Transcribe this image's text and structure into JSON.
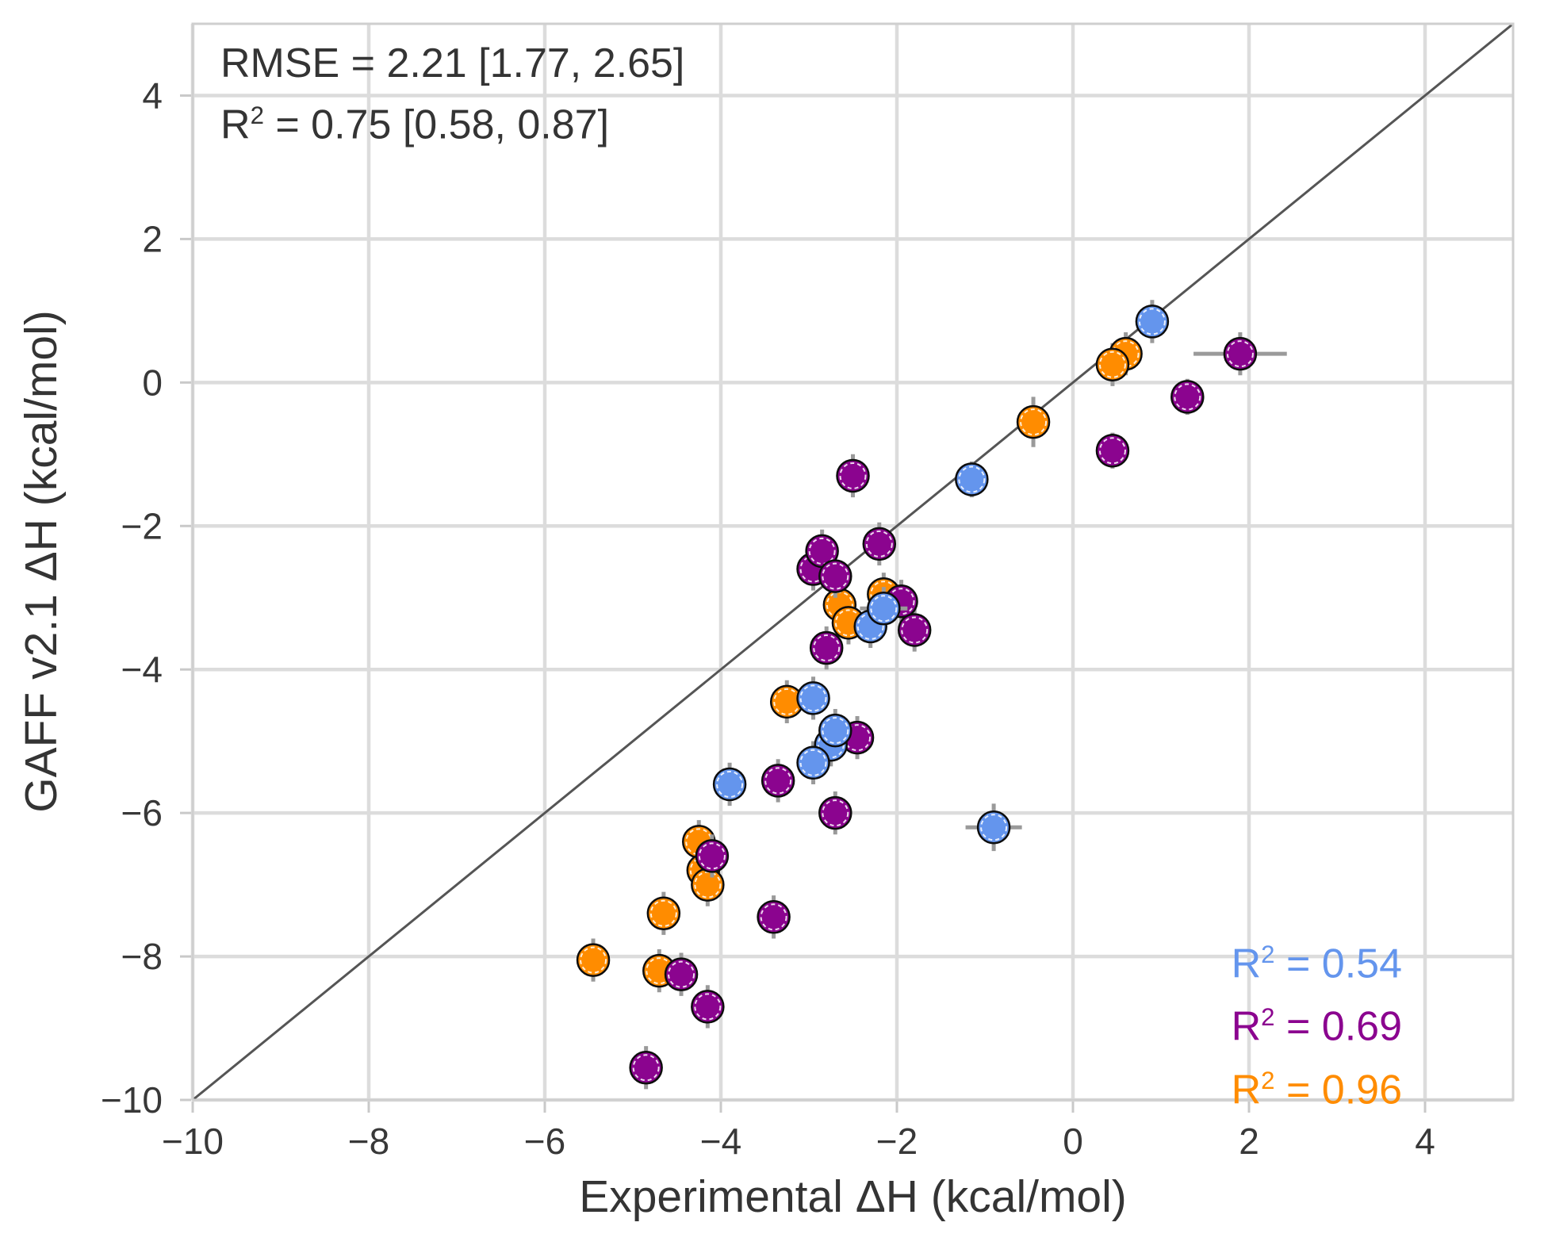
{
  "chart_data": {
    "type": "scatter",
    "xlabel": "Experimental ΔH (kcal/mol)",
    "ylabel": "GAFF v2.1 ΔH (kcal/mol)",
    "xlim": [
      -10,
      5
    ],
    "ylim": [
      -10,
      5
    ],
    "grid": true,
    "identity_line": true,
    "xticks": {
      "values": [
        -10,
        -8,
        -6,
        -4,
        -2,
        0,
        2,
        4
      ],
      "labels": [
        "−10",
        "−8",
        "−6",
        "−4",
        "−2",
        "0",
        "2",
        "4"
      ]
    },
    "yticks": {
      "values": [
        4,
        2,
        0,
        -2,
        -4,
        -6,
        -8,
        -10
      ],
      "labels": [
        "4",
        "2",
        "0",
        "−2",
        "−4",
        "−6",
        "−8",
        "−10"
      ]
    },
    "annotations": {
      "rmse_line": "RMSE = 2.21 [1.77, 2.65]",
      "r2_prefix": "R",
      "r2_sup": "2",
      "r2_rest": " = 0.75 [0.58, 0.87]"
    },
    "legend_position": "lower right",
    "annotation_position": "upper left",
    "colors": {
      "grid": "#dcdcdc",
      "border": "#cfcfcf",
      "tick": "#c9c9c9",
      "identity_line": "#555555",
      "error_bar": "#9a9a9a",
      "marker_edge": "#0d0d0d",
      "text": "#343434"
    },
    "series": [
      {
        "name": "blue",
        "color": "#6495ED",
        "r2": 0.54,
        "legend": {
          "prefix": "R",
          "sup": "2",
          "rest": " = 0.54"
        },
        "points": [
          {
            "x": 0.9,
            "y": 0.85,
            "xerr": 0.15,
            "yerr": 0.3
          },
          {
            "x": -1.15,
            "y": -1.35,
            "xerr": 0.15,
            "yerr": 0.25
          },
          {
            "x": -2.3,
            "y": -3.4,
            "xerr": 0,
            "yerr": 0.3
          },
          {
            "x": -2.15,
            "y": -3.15,
            "xerr": 0.27,
            "yerr": 0.3
          },
          {
            "x": -2.95,
            "y": -4.4,
            "xerr": 0,
            "yerr": 0.3
          },
          {
            "x": -2.75,
            "y": -5.05,
            "xerr": 0,
            "yerr": 0.3
          },
          {
            "x": -2.7,
            "y": -4.85,
            "xerr": 0,
            "yerr": 0.3
          },
          {
            "x": -2.95,
            "y": -5.3,
            "xerr": 0,
            "yerr": 0.3
          },
          {
            "x": -3.9,
            "y": -5.6,
            "xerr": 0,
            "yerr": 0.3
          },
          {
            "x": -0.9,
            "y": -6.2,
            "xerr": 0.32,
            "yerr": 0.33
          }
        ]
      },
      {
        "name": "purple",
        "color": "#8B048F",
        "r2": 0.69,
        "legend": {
          "prefix": "R",
          "sup": "2",
          "rest": " = 0.69"
        },
        "points": [
          {
            "x": 1.9,
            "y": 0.4,
            "xerr": 0.53,
            "yerr": 0.3
          },
          {
            "x": 1.3,
            "y": -0.2,
            "xerr": 0,
            "yerr": 0.25
          },
          {
            "x": 0.45,
            "y": -0.95,
            "xerr": 0,
            "yerr": 0.25
          },
          {
            "x": -2.5,
            "y": -1.3,
            "xerr": 0,
            "yerr": 0.3
          },
          {
            "x": -2.2,
            "y": -2.25,
            "xerr": 0,
            "yerr": 0.3
          },
          {
            "x": -2.95,
            "y": -2.6,
            "xerr": 0,
            "yerr": 0.3
          },
          {
            "x": -2.85,
            "y": -2.35,
            "xerr": 0,
            "yerr": 0.3
          },
          {
            "x": -2.7,
            "y": -2.7,
            "xerr": 0,
            "yerr": 0.3
          },
          {
            "x": -1.95,
            "y": -3.05,
            "xerr": 0,
            "yerr": 0.3
          },
          {
            "x": -1.8,
            "y": -3.45,
            "xerr": 0,
            "yerr": 0.3
          },
          {
            "x": -2.8,
            "y": -3.7,
            "xerr": 0,
            "yerr": 0.3
          },
          {
            "x": -2.45,
            "y": -4.95,
            "xerr": 0,
            "yerr": 0.3
          },
          {
            "x": -3.35,
            "y": -5.55,
            "xerr": 0,
            "yerr": 0.3
          },
          {
            "x": -2.7,
            "y": -6.0,
            "xerr": 0,
            "yerr": 0.3
          },
          {
            "x": -4.1,
            "y": -6.6,
            "xerr": 0,
            "yerr": 0.3
          },
          {
            "x": -3.4,
            "y": -7.45,
            "xerr": 0,
            "yerr": 0.3
          },
          {
            "x": -4.45,
            "y": -8.25,
            "xerr": 0,
            "yerr": 0.3
          },
          {
            "x": -4.15,
            "y": -8.7,
            "xerr": 0,
            "yerr": 0.3
          },
          {
            "x": -4.85,
            "y": -9.55,
            "xerr": 0,
            "yerr": 0.3
          }
        ]
      },
      {
        "name": "orange",
        "color": "#FF8C00",
        "r2": 0.96,
        "legend": {
          "prefix": "R",
          "sup": "2",
          "rest": " = 0.96"
        },
        "points": [
          {
            "x": 0.6,
            "y": 0.4,
            "xerr": 0,
            "yerr": 0.3
          },
          {
            "x": 0.45,
            "y": 0.25,
            "xerr": 0,
            "yerr": 0.3
          },
          {
            "x": -0.45,
            "y": -0.55,
            "xerr": 0,
            "yerr": 0.35
          },
          {
            "x": -2.15,
            "y": -2.95,
            "xerr": 0,
            "yerr": 0.3
          },
          {
            "x": -2.65,
            "y": -3.1,
            "xerr": 0,
            "yerr": 0.3
          },
          {
            "x": -2.55,
            "y": -3.35,
            "xerr": 0,
            "yerr": 0.3
          },
          {
            "x": -3.25,
            "y": -4.45,
            "xerr": 0,
            "yerr": 0.3
          },
          {
            "x": -4.25,
            "y": -6.4,
            "xerr": 0,
            "yerr": 0.3
          },
          {
            "x": -4.2,
            "y": -6.8,
            "xerr": 0,
            "yerr": 0.3
          },
          {
            "x": -4.15,
            "y": -7.0,
            "xerr": 0,
            "yerr": 0.3
          },
          {
            "x": -4.65,
            "y": -7.4,
            "xerr": 0,
            "yerr": 0.3
          },
          {
            "x": -5.45,
            "y": -8.05,
            "xerr": 0,
            "yerr": 0.3
          },
          {
            "x": -4.7,
            "y": -8.2,
            "xerr": 0,
            "yerr": 0.3
          }
        ]
      }
    ]
  }
}
